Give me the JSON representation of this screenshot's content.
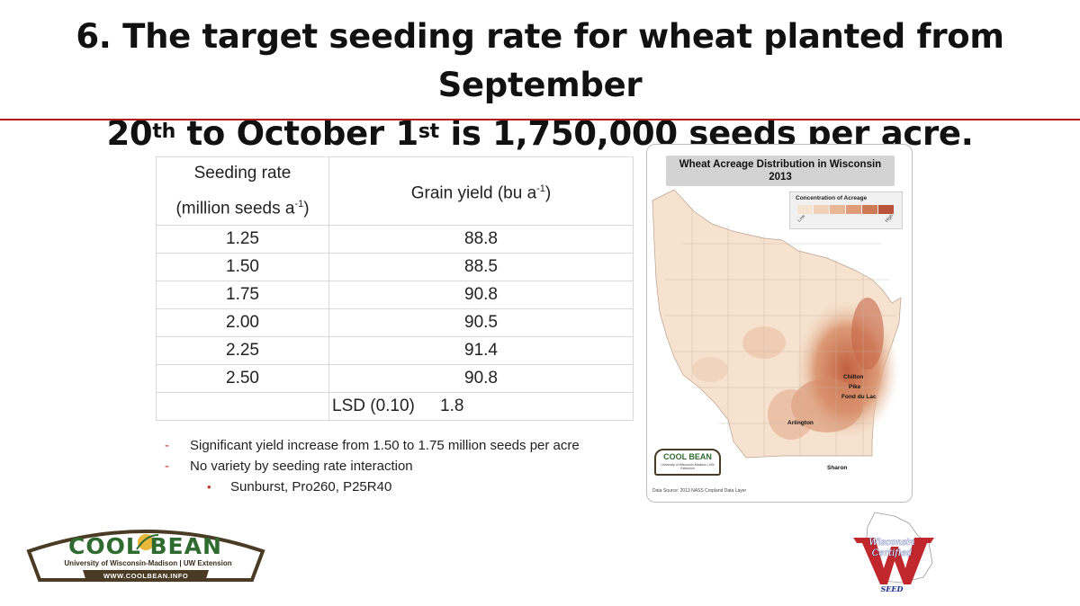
{
  "title": {
    "line1": "6. The target seeding rate for wheat planted from September",
    "line2_a": "20",
    "line2_sup1": "th",
    "line2_b": " to October 1",
    "line2_sup2": "st",
    "line2_c": " is 1,750,000 seeds per acre."
  },
  "table": {
    "header_col1_line1": "Seeding rate",
    "header_col1_line2": "(million seeds a",
    "header_col1_sup": "-1",
    "header_col1_close": ")",
    "header_col2": "Grain yield (bu a",
    "header_col2_sup": "-1",
    "header_col2_close": ")",
    "rows": [
      {
        "rate": "1.25",
        "yield": "88.8"
      },
      {
        "rate": "1.50",
        "yield": "88.5"
      },
      {
        "rate": "1.75",
        "yield": "90.8"
      },
      {
        "rate": "2.00",
        "yield": "90.5"
      },
      {
        "rate": "2.25",
        "yield": "91.4"
      },
      {
        "rate": "2.50",
        "yield": "90.8"
      }
    ],
    "lsd_label": "LSD (0.10)",
    "lsd_value": "1.8"
  },
  "notes": {
    "dash": "-",
    "bullet": "•",
    "item1": "Significant yield increase from 1.50 to 1.75 million seeds per acre",
    "item2": "No variety by seeding rate interaction",
    "subitem": "Sunburst, Pro260, P25R40"
  },
  "map": {
    "title_line1": "Wheat Acreage Distribution in Wisconsin",
    "title_line2": "2013",
    "legend_title": "Concentration of Acreage",
    "legend_low": "Low",
    "legend_high": "High",
    "legend_colors": [
      "#f6e4d2",
      "#f0d0b6",
      "#e8b896",
      "#de9c78",
      "#cf7a57",
      "#b8553a"
    ],
    "cities": [
      "Chilton",
      "Pike",
      "Fond du Lac",
      "Arlington",
      "Sharon"
    ],
    "source": "Data Source: 2013 NASS Cropland Data Layer",
    "mini_logo": "COOL BEAN",
    "mini_logo_sub": "University of Wisconsin-Madison | UW Extension"
  },
  "logo": {
    "name": "COOL BEAN",
    "subtitle": "University of Wisconsin-Madison | UW Extension",
    "url": "WWW.COOLBEAN.INFO"
  },
  "wcs_logo": {
    "line1": "Wisconsin",
    "line2": "Certified",
    "seed": "SEED"
  },
  "colors": {
    "rule": "#b01c1c",
    "bullet": "#c0392b",
    "logo_green": "#2f6b2f",
    "logo_brown": "#4a3b25",
    "wcs_red": "#c0282d",
    "wcs_blue": "#1a2f8a"
  }
}
